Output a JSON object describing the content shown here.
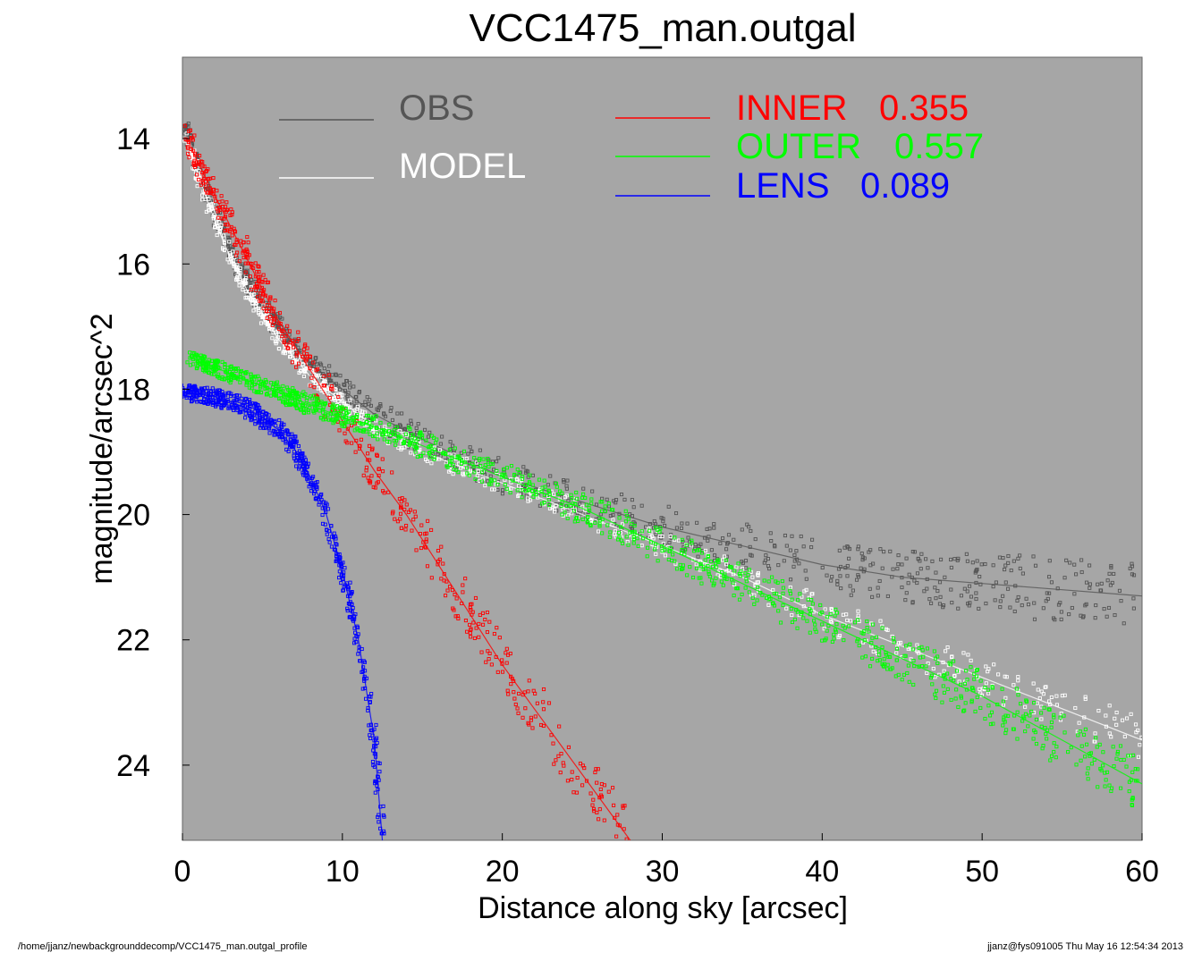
{
  "chart_data": {
    "type": "scatter",
    "title": "VCC1475_man.outgal",
    "xlabel": "Distance along sky [arcsec]",
    "ylabel": "magnitude/arcsec^2",
    "xlim": [
      0,
      60
    ],
    "ylim": [
      25.2,
      12.7
    ],
    "y_inverted": true,
    "x_ticks": [
      "0",
      "10",
      "20",
      "30",
      "40",
      "50",
      "60"
    ],
    "y_ticks": [
      "14",
      "16",
      "18",
      "20",
      "22",
      "24"
    ],
    "background": "#a6a6a6",
    "legend_left": [
      {
        "label": "OBS",
        "color": "#555555"
      },
      {
        "label": "MODEL",
        "color": "#ffffff"
      }
    ],
    "legend_right": [
      {
        "label": "INNER",
        "value": "0.355",
        "color": "#ff0000"
      },
      {
        "label": "OUTER",
        "value": "0.557",
        "color": "#00ff00"
      },
      {
        "label": "LENS",
        "value": "0.089",
        "color": "#0000ff"
      }
    ],
    "series": [
      {
        "name": "OBS",
        "color": "#555555",
        "x": [
          0.2,
          1,
          2,
          3,
          4,
          5,
          6,
          8,
          10,
          12,
          15,
          20,
          25,
          30,
          35,
          40,
          45,
          50,
          55,
          60
        ],
        "y": [
          13.8,
          14.5,
          15.2,
          15.8,
          16.3,
          16.7,
          17.0,
          17.6,
          18.0,
          18.4,
          18.8,
          19.4,
          19.8,
          20.2,
          20.5,
          20.8,
          21.0,
          21.1,
          21.2,
          21.3
        ]
      },
      {
        "name": "MODEL",
        "color": "#ffffff",
        "x": [
          0.3,
          1,
          2,
          3,
          4,
          5,
          6,
          8,
          10,
          12,
          15,
          20,
          25,
          30,
          35,
          40,
          45,
          50,
          55,
          60
        ],
        "y": [
          14.0,
          14.6,
          15.3,
          15.9,
          16.4,
          16.8,
          17.2,
          17.8,
          18.2,
          18.6,
          19.0,
          19.5,
          20.0,
          20.5,
          21.0,
          21.6,
          22.1,
          22.6,
          23.1,
          23.6
        ]
      },
      {
        "name": "INNER",
        "color": "#ff0000",
        "x": [
          0.3,
          1,
          2,
          3,
          4,
          5,
          6,
          8,
          10,
          12,
          14,
          16,
          18,
          20,
          22,
          24,
          26,
          28
        ],
        "y": [
          14.0,
          14.4,
          14.9,
          15.4,
          15.9,
          16.4,
          16.9,
          17.7,
          18.5,
          19.3,
          20.0,
          20.8,
          21.6,
          22.4,
          23.1,
          23.8,
          24.5,
          25.2
        ]
      },
      {
        "name": "OUTER",
        "color": "#00ff00",
        "x": [
          0.5,
          2,
          4,
          6,
          8,
          10,
          12,
          15,
          20,
          25,
          30,
          35,
          40,
          45,
          50,
          55,
          60
        ],
        "y": [
          17.5,
          17.65,
          17.85,
          18.05,
          18.25,
          18.45,
          18.6,
          18.9,
          19.4,
          19.9,
          20.5,
          21.1,
          21.7,
          22.3,
          22.9,
          23.6,
          24.3
        ]
      },
      {
        "name": "LENS",
        "color": "#0000ff",
        "x": [
          0,
          1,
          2,
          3,
          4,
          5,
          6,
          7,
          8,
          9,
          10,
          11,
          12,
          12.5
        ],
        "y": [
          18.05,
          18.08,
          18.12,
          18.2,
          18.3,
          18.45,
          18.65,
          18.95,
          19.4,
          20.0,
          20.9,
          22.0,
          23.6,
          25.2
        ]
      }
    ]
  },
  "footer": {
    "path": "/home/jjanz/newbackgrounddecomp/VCC1475_man.outgal_profile",
    "stamp": "jjanz@fys091005  Thu May 16 12:54:34 2013"
  }
}
